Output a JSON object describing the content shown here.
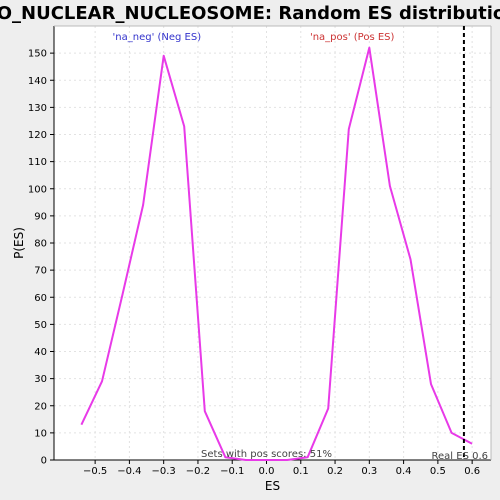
{
  "chart_data": {
    "type": "line",
    "title": "GO_NUCLEAR_NUCLEOSOME: Random ES distribution",
    "xlabel": "ES",
    "ylabel": "P(ES)",
    "xlim": [
      -0.62,
      0.655
    ],
    "ylim": [
      0,
      160
    ],
    "x_ticks": [
      -0.5,
      -0.4,
      -0.3,
      -0.2,
      -0.1,
      0.0,
      0.1,
      0.2,
      0.3,
      0.4,
      0.5,
      0.6
    ],
    "x_tick_labels": [
      "−0.5",
      "−0.4",
      "−0.3",
      "−0.2",
      "−0.1",
      "0.0",
      "0.1",
      "0.2",
      "0.3",
      "0.4",
      "0.5",
      "0.6"
    ],
    "y_ticks": [
      0,
      10,
      20,
      30,
      40,
      50,
      60,
      70,
      80,
      90,
      100,
      110,
      120,
      130,
      140,
      150
    ],
    "y_tick_labels": [
      "0",
      "10",
      "20",
      "30",
      "40",
      "50",
      "60",
      "70",
      "80",
      "90",
      "100",
      "110",
      "120",
      "130",
      "140",
      "150"
    ],
    "grid": true,
    "series": [
      {
        "color": "#e83ae8",
        "x": [
          -0.54,
          -0.48,
          -0.42,
          -0.36,
          -0.3,
          -0.24,
          -0.18,
          -0.12,
          -0.06,
          0.0,
          0.06,
          0.12,
          0.18,
          0.24,
          0.3,
          0.36,
          0.42,
          0.48,
          0.54,
          0.6
        ],
        "y": [
          13,
          29,
          61,
          94,
          149,
          123,
          18,
          1,
          0,
          0,
          0,
          1,
          19,
          122,
          152,
          101,
          74,
          28,
          10,
          6
        ]
      }
    ],
    "marker_line": {
      "x": 0.576,
      "style": "dashed",
      "color": "#000000"
    },
    "annotations": {
      "neg_label": "'na_neg' (Neg ES)",
      "neg_color": "#3333cc",
      "pos_label": "'na_pos' (Pos ES)",
      "pos_color": "#cc3333",
      "pos_scores": "Sets with pos scores: 51%",
      "real_es": "Real ES 0.6",
      "annotation_color": "#444444"
    }
  }
}
